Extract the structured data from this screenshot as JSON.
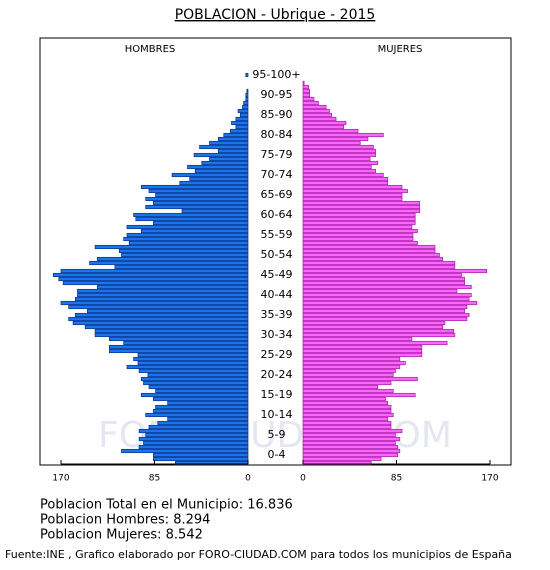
{
  "chart_data": {
    "type": "pyramid",
    "title": "POBLACION - Ubrique - 2015",
    "watermark": "FORO-CIUDAD.COM",
    "categories": [
      null,
      null,
      "0-4",
      null,
      null,
      null,
      null,
      "5-9",
      null,
      null,
      null,
      null,
      "10-14",
      null,
      null,
      null,
      null,
      "15-19",
      null,
      null,
      null,
      null,
      "20-24",
      null,
      null,
      null,
      null,
      "25-29",
      null,
      null,
      null,
      null,
      "30-34",
      null,
      null,
      null,
      null,
      "35-39",
      null,
      null,
      null,
      null,
      "40-44",
      null,
      null,
      null,
      null,
      "45-49",
      null,
      null,
      null,
      null,
      "50-54",
      null,
      null,
      null,
      null,
      "55-59",
      null,
      null,
      null,
      null,
      "60-64",
      null,
      null,
      null,
      null,
      "65-69",
      null,
      null,
      null,
      null,
      "70-74",
      null,
      null,
      null,
      null,
      "75-79",
      null,
      null,
      null,
      null,
      "80-84",
      null,
      null,
      null,
      null,
      "85-90",
      null,
      null,
      null,
      null,
      "90-95",
      null,
      null,
      null,
      null,
      "95-100+",
      null,
      null,
      null
    ],
    "series": [
      {
        "name": "HOMBRES",
        "color": "#1a75e8",
        "side": "left",
        "values": [
          66,
          86,
          86,
          115,
          99,
          95,
          99,
          93,
          99,
          90,
          82,
          73,
          93,
          86,
          84,
          73,
          86,
          97,
          84,
          90,
          95,
          97,
          91,
          99,
          110,
          100,
          104,
          100,
          126,
          126,
          113,
          126,
          139,
          139,
          148,
          159,
          163,
          157,
          146,
          163,
          170,
          157,
          155,
          155,
          137,
          168,
          172,
          177,
          170,
          121,
          144,
          137,
          115,
          117,
          139,
          108,
          113,
          110,
          97,
          110,
          86,
          102,
          104,
          60,
          93,
          86,
          93,
          84,
          90,
          97,
          62,
          53,
          69,
          48,
          55,
          42,
          35,
          49,
          27,
          44,
          35,
          27,
          22,
          16,
          11,
          15,
          11,
          7,
          9,
          5,
          4,
          2,
          2,
          1,
          0,
          0,
          0,
          2,
          0,
          0,
          0
        ]
      },
      {
        "name": "MUJERES",
        "color": "#ff66ff",
        "side": "right",
        "values": [
          62,
          71,
          86,
          88,
          86,
          84,
          88,
          84,
          90,
          80,
          80,
          77,
          82,
          80,
          80,
          77,
          75,
          102,
          82,
          68,
          80,
          104,
          82,
          84,
          88,
          93,
          88,
          108,
          108,
          108,
          131,
          99,
          138,
          137,
          127,
          129,
          149,
          151,
          147,
          149,
          158,
          151,
          153,
          140,
          153,
          147,
          147,
          144,
          167,
          138,
          138,
          127,
          124,
          120,
          120,
          104,
          100,
          100,
          104,
          99,
          102,
          102,
          102,
          106,
          106,
          106,
          90,
          90,
          95,
          90,
          77,
          77,
          73,
          66,
          62,
          68,
          61,
          66,
          66,
          64,
          52,
          59,
          73,
          50,
          37,
          39,
          30,
          26,
          24,
          21,
          14,
          10,
          6,
          6,
          5,
          1,
          0,
          0,
          0,
          0,
          0
        ]
      }
    ],
    "xlim": [
      0,
      170
    ],
    "xticks": [
      0,
      85,
      170
    ],
    "notes": [
      "Poblacion Total en el Municipio: 16.836",
      "Poblacion Hombres: 8.294",
      "Poblacion Mujeres: 8.542"
    ],
    "source": "Fuente:INE , Grafico elaborado por FORO-CIUDAD.COM para todos los municipios de España"
  }
}
